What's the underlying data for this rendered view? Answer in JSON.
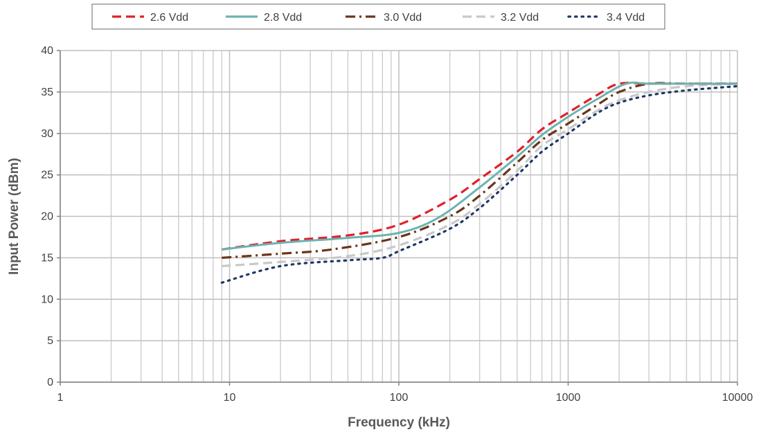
{
  "chart_data": {
    "type": "line",
    "title": "",
    "xlabel": "Frequency (kHz)",
    "ylabel": "Input Power (dBm)",
    "xscale": "log",
    "xlim": [
      1,
      10000
    ],
    "ylim": [
      0,
      40
    ],
    "xticks": [
      1,
      10,
      100,
      1000,
      10000
    ],
    "xtick_labels": [
      "1",
      "10",
      "100",
      "1000",
      "10000"
    ],
    "yticks": [
      0,
      5,
      10,
      15,
      20,
      25,
      30,
      35,
      40
    ],
    "ytick_labels": [
      "0",
      "5",
      "10",
      "15",
      "20",
      "25",
      "30",
      "35",
      "40"
    ],
    "grid": true,
    "legend_position": "top-center",
    "series": [
      {
        "name": "2.6 Vdd",
        "color": "#e0202a",
        "style": "dashed",
        "x": [
          9,
          20,
          50,
          100,
          200,
          300,
          500,
          700,
          1000,
          1500,
          2000,
          3000,
          5000,
          10000
        ],
        "y": [
          16.0,
          17.0,
          17.7,
          19.0,
          22.0,
          24.5,
          27.8,
          30.5,
          32.5,
          34.7,
          36.0,
          36.0,
          36.0,
          36.0
        ]
      },
      {
        "name": "2.8 Vdd",
        "color": "#6bb3b1",
        "style": "solid",
        "x": [
          9,
          20,
          50,
          100,
          170,
          300,
          500,
          700,
          1000,
          1500,
          2200,
          3000,
          5000,
          10000
        ],
        "y": [
          16.0,
          16.8,
          17.4,
          18.0,
          19.8,
          23.5,
          27.2,
          29.8,
          32.0,
          34.2,
          36.0,
          36.0,
          36.0,
          36.0
        ]
      },
      {
        "name": "3.0 Vdd",
        "color": "#6b3418",
        "style": "dash-dot",
        "x": [
          9,
          20,
          40,
          100,
          200,
          300,
          500,
          700,
          1000,
          1500,
          2000,
          3000,
          5000,
          10000
        ],
        "y": [
          15.0,
          15.5,
          16.0,
          17.5,
          20.0,
          22.5,
          26.5,
          29.2,
          31.2,
          33.5,
          35.0,
          36.0,
          36.0,
          36.0
        ]
      },
      {
        "name": "3.2 Vdd",
        "color": "#c8c8c8",
        "style": "dashed",
        "x": [
          9,
          20,
          50,
          100,
          200,
          300,
          500,
          700,
          1000,
          1500,
          2000,
          3000,
          5000,
          10000
        ],
        "y": [
          14.0,
          14.5,
          15.2,
          16.5,
          19.0,
          21.5,
          25.5,
          28.5,
          30.5,
          32.8,
          34.0,
          35.0,
          35.7,
          36.0
        ]
      },
      {
        "name": "3.4 Vdd",
        "color": "#1f3864",
        "style": "dotted",
        "x": [
          9,
          20,
          50,
          80,
          100,
          200,
          300,
          500,
          700,
          1000,
          1500,
          2000,
          3000,
          5000,
          10000
        ],
        "y": [
          12.0,
          14.0,
          14.7,
          15.0,
          15.8,
          18.5,
          21.0,
          25.0,
          27.8,
          30.0,
          32.5,
          33.7,
          34.6,
          35.2,
          35.7
        ]
      }
    ]
  }
}
